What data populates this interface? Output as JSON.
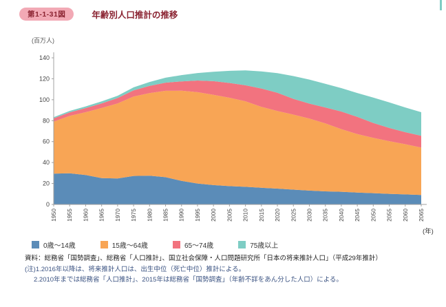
{
  "page": {
    "figure_badge": "第1-1-31図",
    "title": "年齢別人口推計の推移"
  },
  "chart_data": {
    "type": "area",
    "stacked": true,
    "title": "年齢別人口推計の推移",
    "unit_label": "(百万人)",
    "x_axis_label": "(年)",
    "ylim": [
      0,
      140
    ],
    "yticks": [
      0,
      20,
      40,
      60,
      80,
      100,
      120,
      140
    ],
    "grid": false,
    "legend_position": "bottom",
    "categories": [
      "1950",
      "1955",
      "1960",
      "1965",
      "1970",
      "1975",
      "1980",
      "1985",
      "1990",
      "1995",
      "2000",
      "2005",
      "2010",
      "2015",
      "2020",
      "2025",
      "2030",
      "2035",
      "2040",
      "2045",
      "2050",
      "2055",
      "2060",
      "2065"
    ],
    "series": [
      {
        "key": "age-0-14",
        "name": "0歳〜14歳",
        "values": [
          29.4,
          29.8,
          28.1,
          25.2,
          24.8,
          27.2,
          27.5,
          26.0,
          22.5,
          20.0,
          18.5,
          17.5,
          16.8,
          15.9,
          15.1,
          14.1,
          13.2,
          12.5,
          12.1,
          11.4,
          10.8,
          10.1,
          9.6,
          9.0
        ]
      },
      {
        "key": "age-15-64",
        "name": "15歳〜64歳",
        "values": [
          49.7,
          54.7,
          60.0,
          66.9,
          71.6,
          75.8,
          78.8,
          82.5,
          86.1,
          87.2,
          86.2,
          84.4,
          81.7,
          77.3,
          74.1,
          71.7,
          68.8,
          64.9,
          59.8,
          55.8,
          52.8,
          50.3,
          47.9,
          45.3
        ]
      },
      {
        "key": "age-65-74",
        "name": "65〜74歳",
        "values": [
          3.1,
          3.4,
          3.9,
          4.4,
          5.2,
          6.0,
          6.9,
          7.8,
          8.9,
          11.1,
          13.0,
          14.1,
          15.3,
          17.5,
          17.5,
          15.0,
          14.3,
          15.2,
          16.8,
          16.4,
          14.2,
          12.6,
          11.5,
          11.3
        ]
      },
      {
        "key": "age-75-plus",
        "name": "75歳以上",
        "values": [
          1.1,
          1.4,
          1.6,
          1.9,
          2.2,
          2.8,
          3.7,
          4.7,
          6.0,
          7.2,
          9.0,
          11.6,
          14.2,
          16.3,
          18.7,
          21.8,
          22.9,
          22.6,
          22.4,
          22.8,
          24.2,
          24.5,
          23.6,
          22.5
        ]
      }
    ],
    "colors": [
      "#5b8cb8",
      "#f8a555",
      "#f2737f",
      "#7ecdc4"
    ]
  },
  "footer": {
    "source": "資料：総務省「国勢調査」、総務省「人口推計」、国立社会保障・人口問題研究所「日本の将来推計人口」（平成29年推計）",
    "note1": "(注)1.2016年以降は、将来推計人口は、出生中位（死亡中位）推計による。",
    "note2": "2.2010年までは総務省「人口推計」、2015年は総務省「国勢調査」（年齢不詳をあん分した人口）による。"
  }
}
